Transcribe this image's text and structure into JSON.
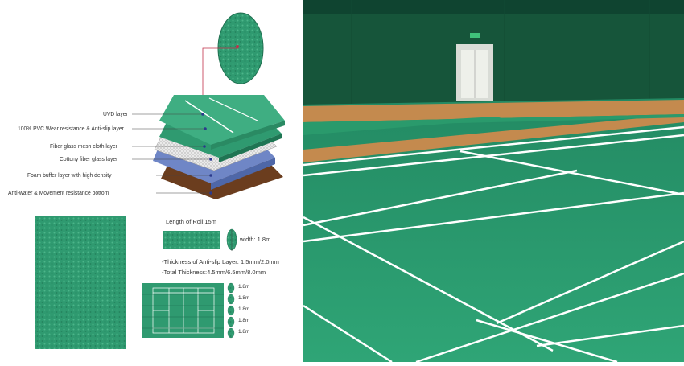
{
  "layers": {
    "labels": [
      "UVD layer",
      "100% PVC Wear resistance & Anti-slip layer",
      "Fiber glass mesh cloth layer",
      "Cottony fiber glass layer",
      "Foam buffer layer with high density",
      "Anti-water & Movement resistance bottom"
    ]
  },
  "roll": {
    "length_label": "Length of Roll:15m",
    "width_label": "width: 1.8m",
    "thickness_antislip": "-Thickness of Anti-slip Layer: 1.5mm/2.0mm",
    "thickness_total": "-Total Thickness:4.5mm/6.5mm/8.0mm"
  },
  "strip_widths": [
    "1.8m",
    "1.8m",
    "1.8m",
    "1.8m",
    "1.8m"
  ],
  "colors": {
    "floor_green": "#2e9f74",
    "court_line": "#ffffff",
    "wood_border": "#c48a4e",
    "wall_dark": "#16553a",
    "foam_brown": "#6b3d1e",
    "cotton_blue": "#6f86c6"
  }
}
